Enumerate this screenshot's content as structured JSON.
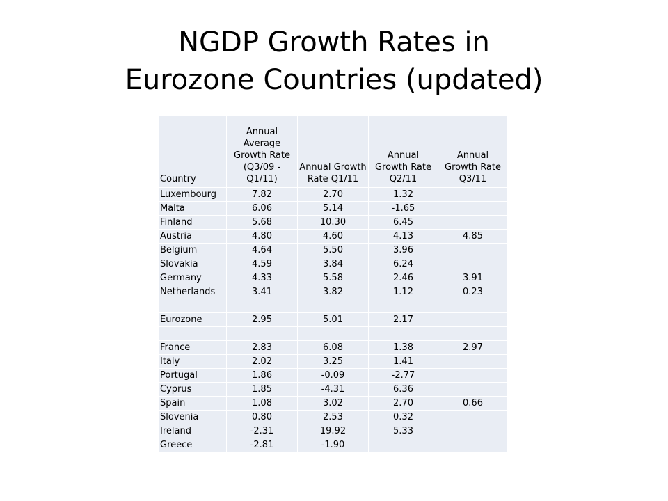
{
  "slide": {
    "title_line1": "NGDP Growth Rates in",
    "title_line2": "Eurozone Countries (updated)"
  },
  "table": {
    "headers": [
      "Country",
      "Annual Average Growth Rate (Q3/09 - Q1/11)",
      "Annual Growth Rate Q1/11",
      "Annual Growth Rate Q2/11",
      "Annual Growth Rate Q3/11"
    ],
    "rows": [
      [
        "Luxembourg",
        "7.82",
        "2.70",
        "1.32",
        ""
      ],
      [
        "Malta",
        "6.06",
        "5.14",
        "-1.65",
        ""
      ],
      [
        "Finland",
        "5.68",
        "10.30",
        "6.45",
        ""
      ],
      [
        "Austria",
        "4.80",
        "4.60",
        "4.13",
        "4.85"
      ],
      [
        "Belgium",
        "4.64",
        "5.50",
        "3.96",
        ""
      ],
      [
        "Slovakia",
        "4.59",
        "3.84",
        "6.24",
        ""
      ],
      [
        "Germany",
        "4.33",
        "5.58",
        "2.46",
        "3.91"
      ],
      [
        "Netherlands",
        "3.41",
        "3.82",
        "1.12",
        "0.23"
      ],
      [
        "",
        "",
        "",
        "",
        ""
      ],
      [
        "Eurozone",
        "2.95",
        "5.01",
        "2.17",
        ""
      ],
      [
        "",
        "",
        "",
        "",
        ""
      ],
      [
        "France",
        "2.83",
        "6.08",
        "1.38",
        "2.97"
      ],
      [
        "Italy",
        "2.02",
        "3.25",
        "1.41",
        ""
      ],
      [
        "Portugal",
        "1.86",
        "-0.09",
        "-2.77",
        ""
      ],
      [
        "Cyprus",
        "1.85",
        "-4.31",
        "6.36",
        ""
      ],
      [
        "Spain",
        "1.08",
        "3.02",
        "2.70",
        "0.66"
      ],
      [
        "Slovenia",
        "0.80",
        "2.53",
        "0.32",
        ""
      ],
      [
        "Ireland",
        "-2.31",
        "19.92",
        "5.33",
        ""
      ],
      [
        "Greece",
        "-2.81",
        "-1.90",
        "",
        ""
      ]
    ]
  }
}
